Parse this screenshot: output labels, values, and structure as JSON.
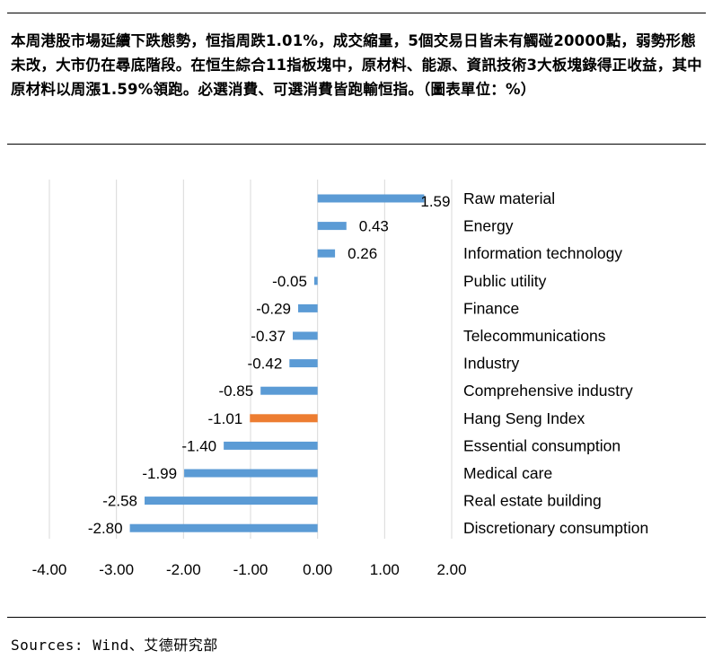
{
  "headline": "本周港股市場延續下跌態勢，恒指周跌1.01%，成交縮量，5個交易日皆未有觸碰20000點，弱勢形態未改，大市仍在尋底階段。在恒生綜合11指板塊中，原材料、能源、資訊技術3大板塊錄得正收益，其中原材料以周漲1.59%領跑。必選消費、可選消費皆跑輸恒指。（圖表單位：%）",
  "source": "Sources: Wind、艾德研究部",
  "colors": {
    "bar": "#5b9bd5",
    "highlight": "#ed7d31",
    "axis": "#d9d9d9"
  },
  "chart_data": {
    "type": "bar",
    "orientation": "horizontal",
    "categories": [
      "Raw material",
      "Energy",
      "Information technology",
      "Public utility",
      "Finance",
      "Telecommunications",
      "Industry",
      "Comprehensive industry",
      "Hang Seng Index",
      "Essential consumption",
      "Medical care",
      "Real estate building",
      "Discretionary consumption"
    ],
    "values": [
      1.59,
      0.43,
      0.26,
      -0.05,
      -0.29,
      -0.37,
      -0.42,
      -0.85,
      -1.01,
      -1.4,
      -1.99,
      -2.58,
      -2.8
    ],
    "value_labels": [
      "1.59",
      "0.43",
      "0.26",
      "-0.05",
      "-0.29",
      "-0.37",
      "-0.42",
      "-0.85",
      "-1.01",
      "-1.40",
      "-1.99",
      "-2.58",
      "-2.80"
    ],
    "highlight_category": "Hang Seng Index",
    "xlim": [
      -4,
      2
    ],
    "xticks": [
      "-4.00",
      "-3.00",
      "-2.00",
      "-1.00",
      "0.00",
      "1.00",
      "2.00"
    ],
    "xtick_values": [
      -4,
      -3,
      -2,
      -1,
      0,
      1,
      2
    ],
    "grid": true,
    "legend": false
  }
}
